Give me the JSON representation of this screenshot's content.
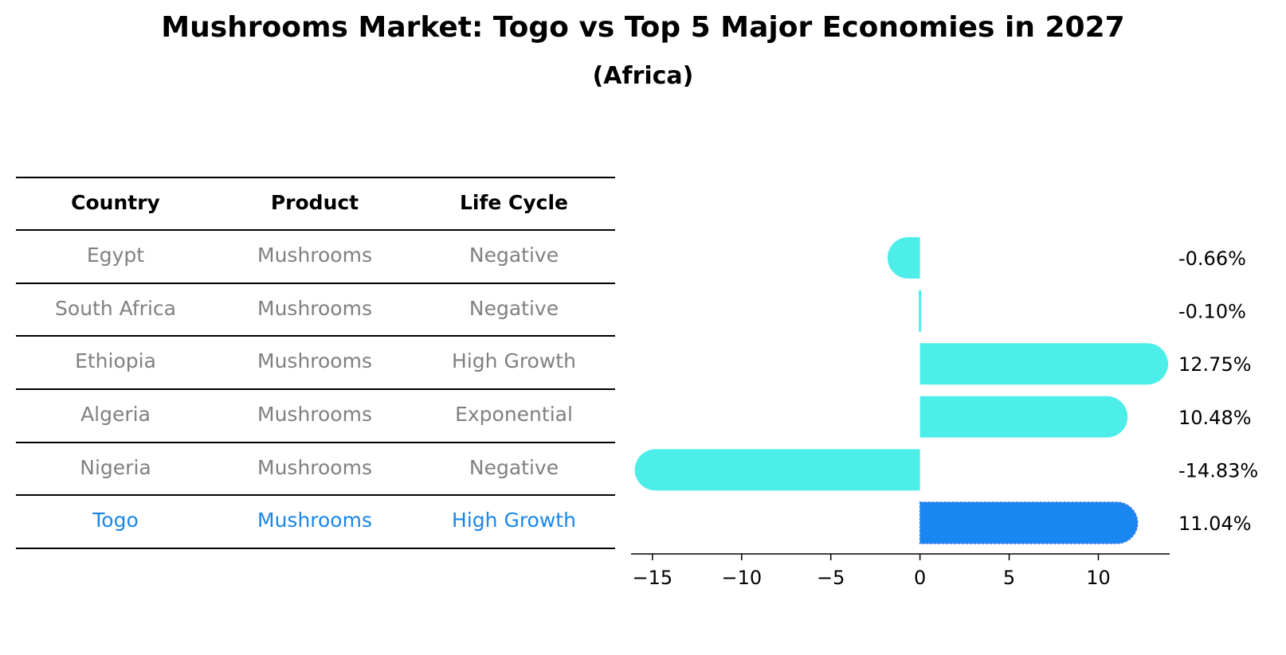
{
  "title": "Mushrooms Market: Togo vs Top 5 Major Economies in 2027",
  "subtitle": "(Africa)",
  "table": {
    "headers": [
      "Country",
      "Product",
      "Life Cycle"
    ],
    "rows": [
      {
        "country": "Egypt",
        "product": "Mushrooms",
        "life_cycle": "Negative"
      },
      {
        "country": "South Africa",
        "product": "Mushrooms",
        "life_cycle": "Negative"
      },
      {
        "country": "Ethiopia",
        "product": "Mushrooms",
        "life_cycle": "High Growth"
      },
      {
        "country": "Algeria",
        "product": "Mushrooms",
        "life_cycle": "Exponential"
      },
      {
        "country": "Nigeria",
        "product": "Mushrooms",
        "life_cycle": "Negative"
      },
      {
        "country": "Togo",
        "product": "Mushrooms",
        "life_cycle": "High Growth"
      }
    ]
  },
  "chart_data": {
    "type": "bar",
    "orientation": "horizontal",
    "categories": [
      "Egypt",
      "South Africa",
      "Ethiopia",
      "Algeria",
      "Nigeria",
      "Togo"
    ],
    "values": [
      -0.66,
      -0.1,
      12.75,
      10.48,
      -14.83,
      11.04
    ],
    "data_labels": [
      "-0.66%",
      "-0.10%",
      "12.75%",
      "10.48%",
      "-14.83%",
      "11.04%"
    ],
    "highlight": "Togo",
    "xlim": [
      -16.2,
      14.0
    ],
    "xticks": [
      -15,
      -10,
      -5,
      0,
      5,
      10
    ],
    "xtick_labels": [
      "−15",
      "−10",
      "−5",
      "0",
      "5",
      "10"
    ],
    "colors": {
      "default": "#4deeea",
      "highlight": "#1a86f2"
    }
  }
}
